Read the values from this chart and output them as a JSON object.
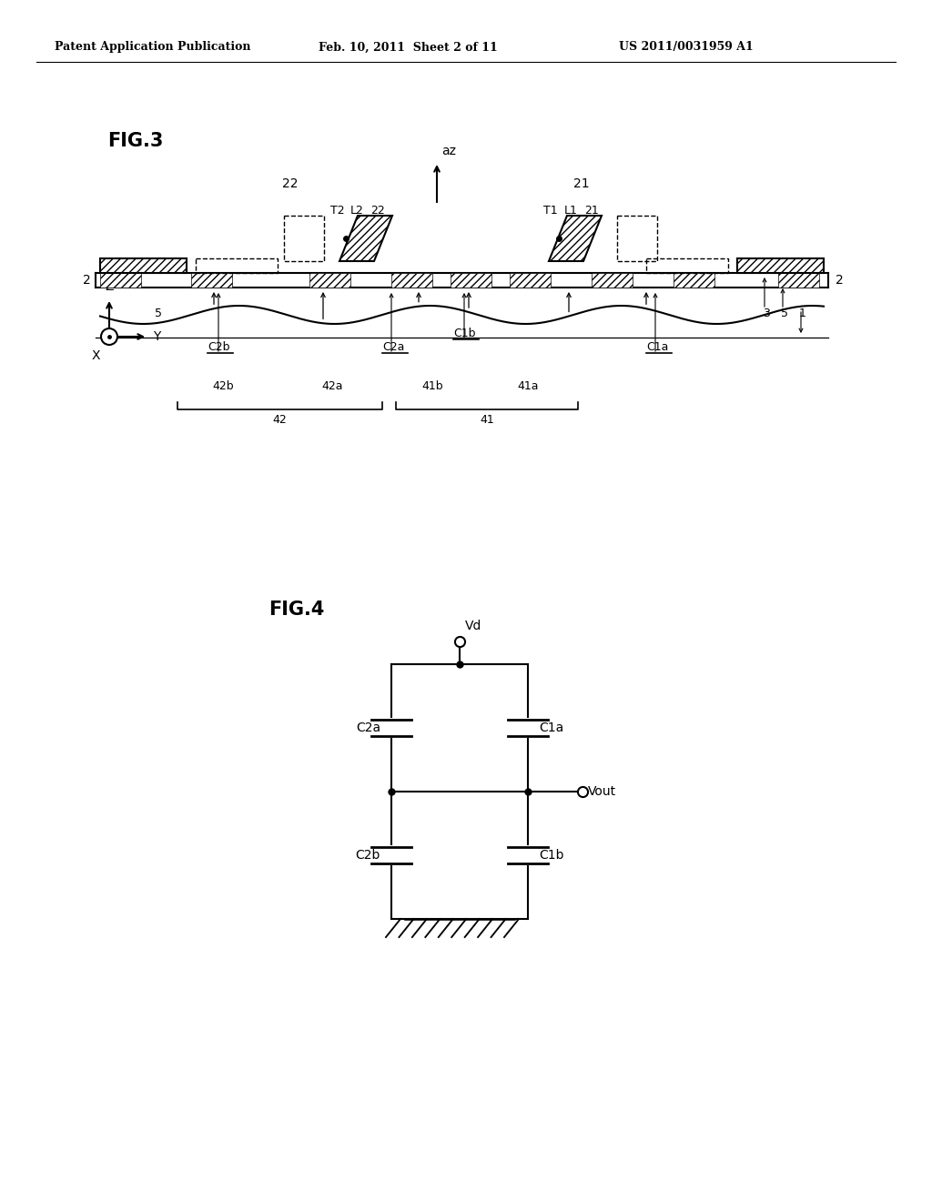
{
  "bg_color": "#ffffff",
  "text_color": "#000000",
  "header_left": "Patent Application Publication",
  "header_center": "Feb. 10, 2011  Sheet 2 of 11",
  "header_right": "US 2011/0031959 A1",
  "fig3_label": "FIG.3",
  "fig4_label": "FIG.4",
  "line_color": "#000000",
  "line_width": 1.5
}
